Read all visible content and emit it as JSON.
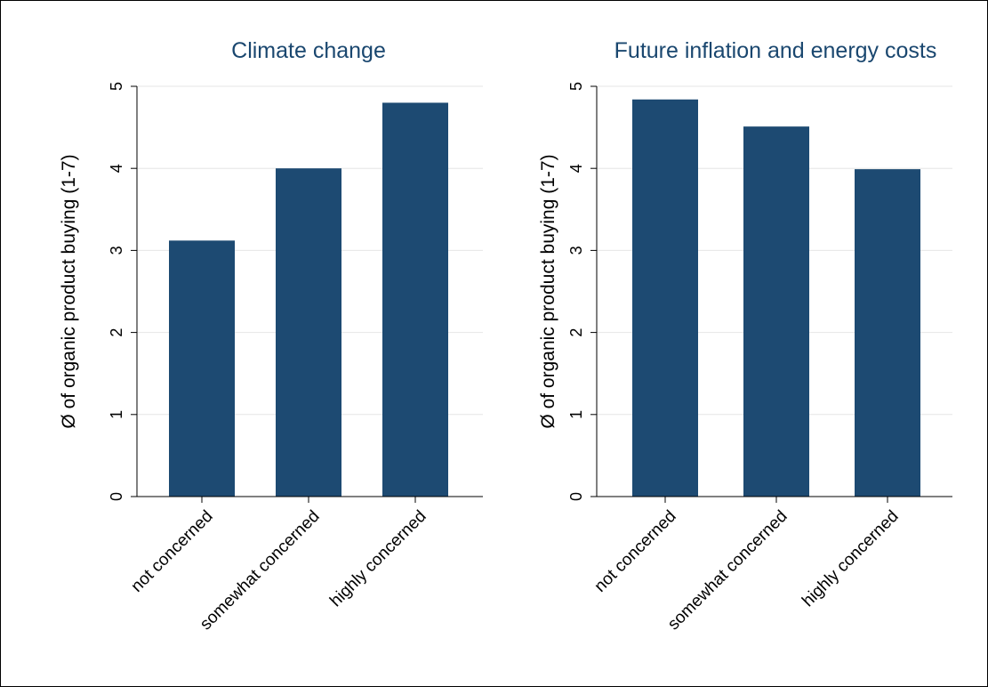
{
  "chart_data": [
    {
      "type": "bar",
      "title": "Climate change",
      "ylabel": "Ø of organic product buying (1-7)",
      "xlabel": "",
      "categories": [
        "not concerned",
        "somewhat concerned",
        "highly concerned"
      ],
      "values": [
        3.12,
        4.0,
        4.8
      ],
      "ylim": [
        0,
        5
      ],
      "yticks": [
        0,
        1,
        2,
        3,
        4,
        5
      ],
      "grid": true,
      "bar_color": "#1d4a72"
    },
    {
      "type": "bar",
      "title": "Future inflation and energy costs",
      "ylabel": "Ø of organic product buying (1-7)",
      "xlabel": "",
      "categories": [
        "not concerned",
        "somewhat concerned",
        "highly concerned"
      ],
      "values": [
        4.84,
        4.51,
        3.99
      ],
      "ylim": [
        0,
        5
      ],
      "yticks": [
        0,
        1,
        2,
        3,
        4,
        5
      ],
      "grid": true,
      "bar_color": "#1d4a72"
    }
  ],
  "colors": {
    "title": "#1a476f",
    "bar": "#1d4a72",
    "grid": "#e6e6e6",
    "axis": "#000000"
  }
}
